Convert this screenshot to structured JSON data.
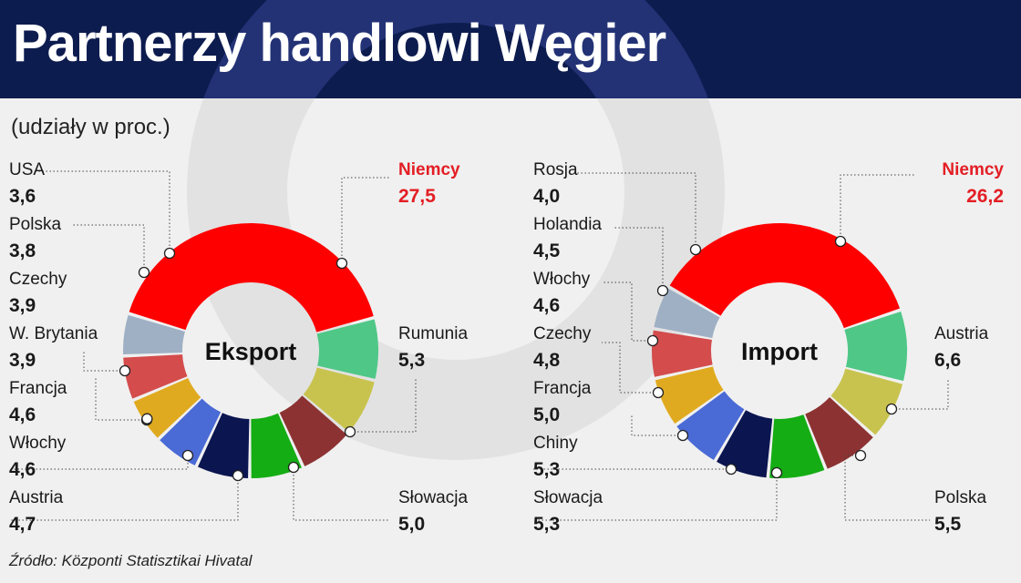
{
  "header": {
    "title": "Partnerzy handlowi Węgier",
    "subtitle": "(udziały w proc.)"
  },
  "footer": {
    "source": "Źródło: Központi Statisztikai Hivatal"
  },
  "colors": {
    "header_bg": "#0d1c4f",
    "highlight_text": "#e31e24",
    "page_bg": "#f0f0f0"
  },
  "chart_data": [
    {
      "type": "pie",
      "variant": "donut",
      "center_label": "Eksport",
      "slices": [
        {
          "name": "Niemcy",
          "value": "27,5",
          "color": "#ff0000",
          "highlight": true
        },
        {
          "name": "Rumunia",
          "value": "5,3",
          "color": "#4fc787"
        },
        {
          "name": "Słowacja",
          "value": "5,0",
          "color": "#c8c34e"
        },
        {
          "name": "Austria",
          "value": "4,7",
          "color": "#8c3232"
        },
        {
          "name": "Włochy",
          "value": "4,6",
          "color": "#14ad14"
        },
        {
          "name": "Francja",
          "value": "4,6",
          "color": "#0b1550"
        },
        {
          "name": "W. Brytania",
          "value": "3,9",
          "color": "#4a6ad6"
        },
        {
          "name": "Czechy",
          "value": "3,9",
          "color": "#e0aa20"
        },
        {
          "name": "Polska",
          "value": "3,8",
          "color": "#d44c4c"
        },
        {
          "name": "USA",
          "value": "3,6",
          "color": "#9fb0c4"
        }
      ]
    },
    {
      "type": "pie",
      "variant": "donut",
      "center_label": "Import",
      "slices": [
        {
          "name": "Niemcy",
          "value": "26,2",
          "color": "#ff0000",
          "highlight": true
        },
        {
          "name": "Austria",
          "value": "6,6",
          "color": "#4fc787"
        },
        {
          "name": "Polska",
          "value": "5,5",
          "color": "#c8c34e"
        },
        {
          "name": "Słowacja",
          "value": "5,3",
          "color": "#8c3232"
        },
        {
          "name": "Chiny",
          "value": "5,3",
          "color": "#14ad14"
        },
        {
          "name": "Francja",
          "value": "5,0",
          "color": "#0b1550"
        },
        {
          "name": "Czechy",
          "value": "4,8",
          "color": "#4a6ad6"
        },
        {
          "name": "Włochy",
          "value": "4,6",
          "color": "#e0aa20"
        },
        {
          "name": "Holandia",
          "value": "4,5",
          "color": "#d44c4c"
        },
        {
          "name": "Rosja",
          "value": "4,0",
          "color": "#9fb0c4"
        }
      ]
    }
  ]
}
